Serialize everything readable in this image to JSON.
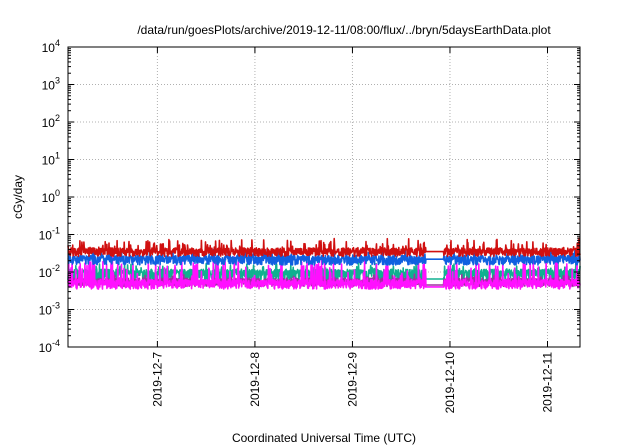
{
  "chart_data": {
    "type": "line",
    "title": "/data/run/goesPlots/archive/2019-12-11/08:00/flux/../bryn/5daysEarthData.plot",
    "xlabel": "Coordinated Universal Time (UTC)",
    "ylabel": "cGy/day",
    "yscale": "log",
    "ylim": [
      0.0001,
      10000
    ],
    "xlim": [
      "2019-12-06 02:00",
      "2019-12-11 08:00"
    ],
    "grid": true,
    "y_ticks": [
      {
        "base": "10",
        "exp": "-4"
      },
      {
        "base": "10",
        "exp": "-3"
      },
      {
        "base": "10",
        "exp": "-2"
      },
      {
        "base": "10",
        "exp": "-1"
      },
      {
        "base": "10",
        "exp": "0"
      },
      {
        "base": "10",
        "exp": "1"
      },
      {
        "base": "10",
        "exp": "2"
      },
      {
        "base": "10",
        "exp": "3"
      },
      {
        "base": "10",
        "exp": "4"
      }
    ],
    "x_ticks": [
      "2019-12-7",
      "2019-12-8",
      "2019-12-9",
      "2019-12-10",
      "2019-12-11"
    ],
    "gap": {
      "start": "2019-12-09 18:00",
      "end": "2019-12-09 22:30"
    },
    "series": [
      {
        "color": "#d01010",
        "typical": 0.035,
        "noise_low": 0.75,
        "noise_high": 1.9
      },
      {
        "color": "#1060e0",
        "typical": 0.022,
        "noise_low": 0.7,
        "noise_high": 1.6
      },
      {
        "color": "#10b090",
        "typical": 0.0095,
        "noise_low": 0.55,
        "noise_high": 1.5,
        "gap_value": 0.0065
      },
      {
        "color": "#a030a0",
        "typical": 0.0055,
        "noise_low": 0.75,
        "noise_high": 1.3,
        "gap_value": 0.0045
      },
      {
        "color": "#ff10ff",
        "typical": 0.005,
        "noise_low": 0.7,
        "noise_high": 4.5,
        "gap_value": 0.004
      }
    ]
  }
}
